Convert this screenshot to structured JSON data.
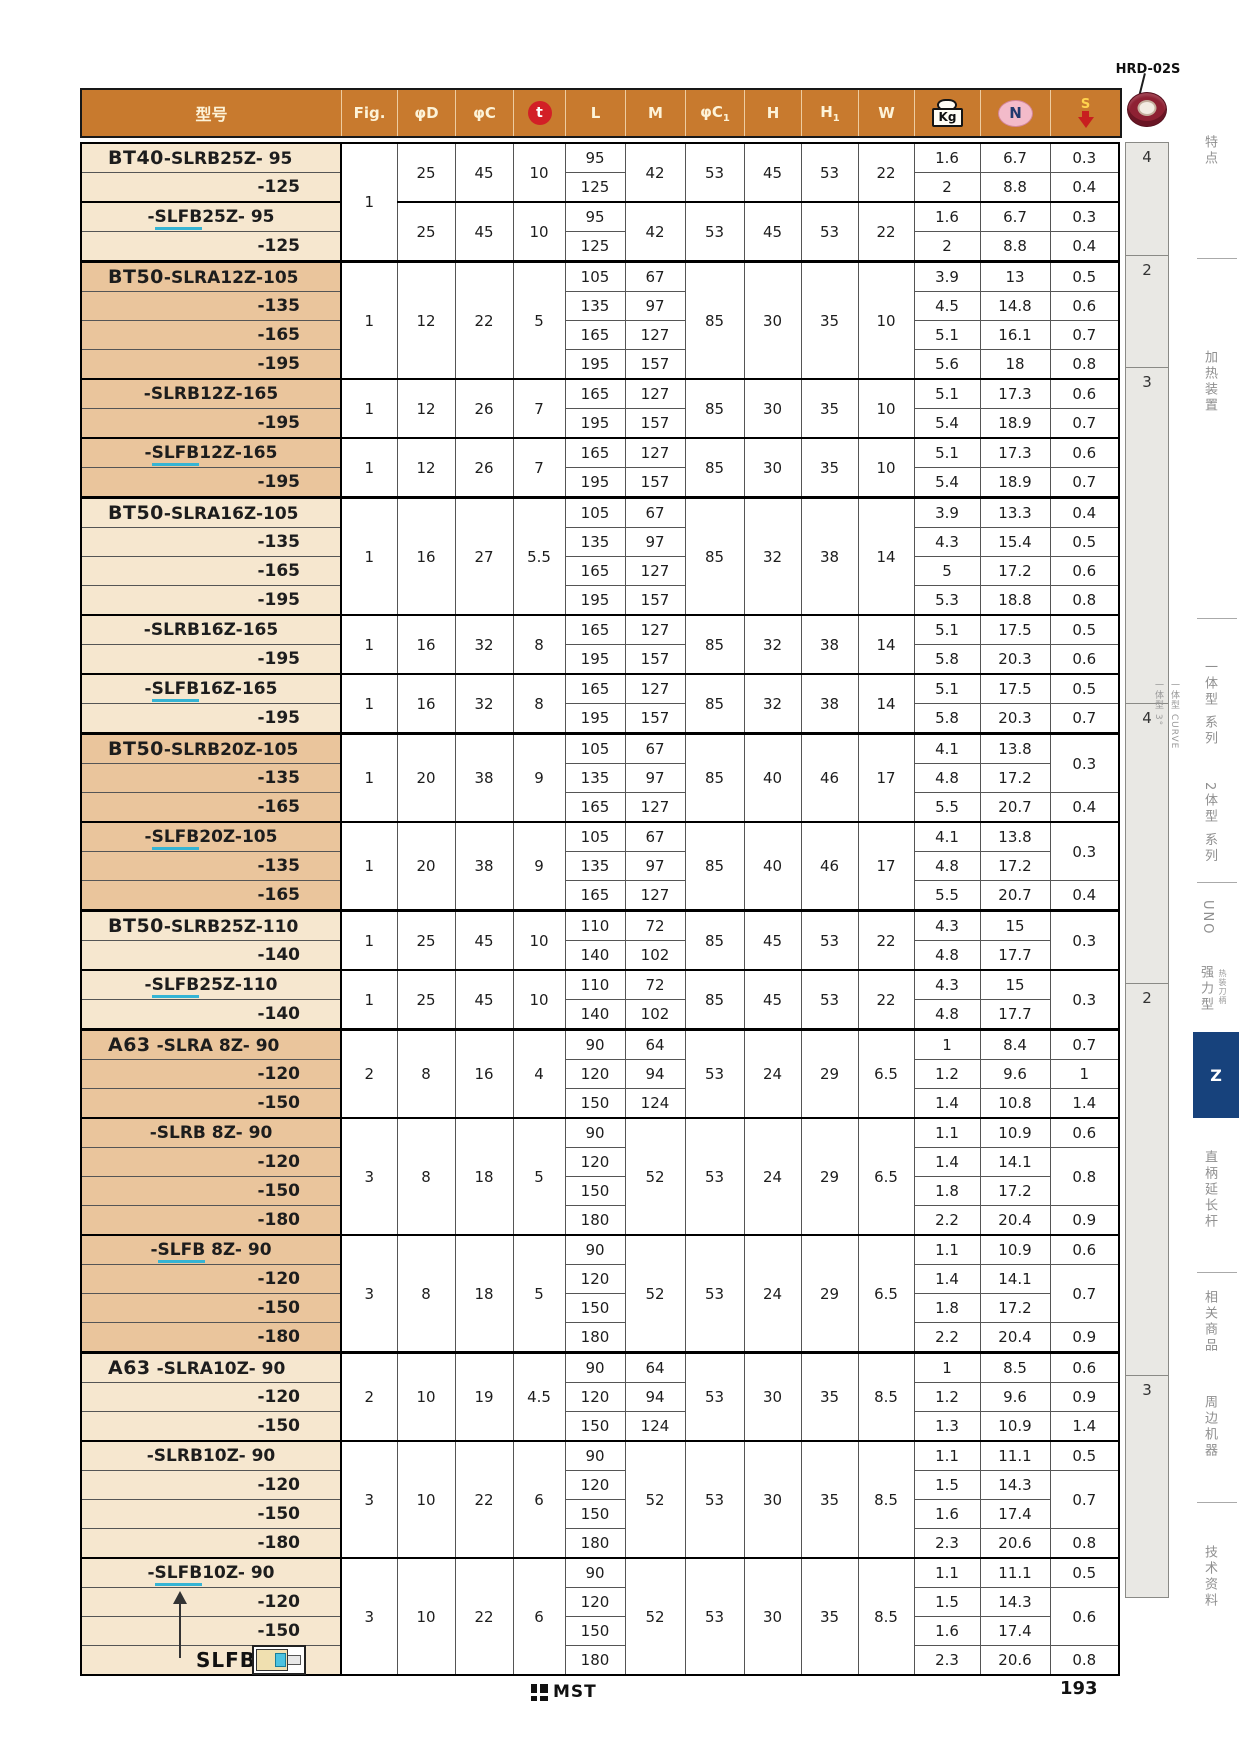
{
  "page": {
    "number": "193"
  },
  "header": {
    "model_col": "型号",
    "fig": "Fig.",
    "d": "φD",
    "c": "φC",
    "t": "t",
    "l": "L",
    "m": "M",
    "c1": "φC",
    "c1sub": "1",
    "h": "H",
    "h1": "H",
    "h1sub": "1",
    "w": "W",
    "kg": "Kg",
    "n": "N",
    "s": "S",
    "hrd_label": "HRD-02S"
  },
  "colors": {
    "header_orange": "#c87a2e",
    "band_light": "#f6e7cf",
    "band_dark": "#eac59c",
    "underline_cyan": "#35b4d4",
    "z_tab_navy": "#17427c",
    "t_red": "#d21f26",
    "arrow_red": "#c81f1f",
    "n_pink": "#f3bbca",
    "hrd_ring_red": "#8e2133"
  },
  "table": {
    "groups": [
      {
        "band": "light",
        "subs": [
          {
            "prefix": "BT40",
            "name": "-SLRB25Z- 95",
            "u": false,
            "fig": "1",
            "figspan": 4,
            "d": "25",
            "c": "45",
            "t": "10",
            "c1": "53",
            "h": "45",
            "h1": "53",
            "w": "22",
            "rows": [
              {
                "l": "95",
                "m": "42",
                "mspan": 2,
                "kg": "1.6",
                "n": "6.7",
                "s": "0.3"
              },
              {
                "suffix": "-125",
                "l": "125",
                "kg": "2",
                "n": "8.8",
                "s": "0.4"
              }
            ]
          },
          {
            "prefix": "",
            "name": "-SLFB25Z- 95",
            "u": true,
            "fig": "",
            "figspan": 0,
            "d": "25",
            "c": "45",
            "t": "10",
            "c1": "53",
            "h": "45",
            "h1": "53",
            "w": "22",
            "rows": [
              {
                "l": "95",
                "m": "42",
                "mspan": 2,
                "kg": "1.6",
                "n": "6.7",
                "s": "0.3"
              },
              {
                "suffix": "-125",
                "l": "125",
                "kg": "2",
                "n": "8.8",
                "s": "0.4"
              }
            ]
          }
        ]
      },
      {
        "band": "dark",
        "subs": [
          {
            "prefix": "BT50",
            "name": "-SLRA12Z-105",
            "u": false,
            "fig": "1",
            "d": "12",
            "c": "22",
            "t": "5",
            "c1": "85",
            "h": "30",
            "h1": "35",
            "w": "10",
            "rows": [
              {
                "l": "105",
                "m": "67",
                "kg": "3.9",
                "n": "13",
                "s": "0.5"
              },
              {
                "suffix": "-135",
                "l": "135",
                "m": "97",
                "kg": "4.5",
                "n": "14.8",
                "s": "0.6"
              },
              {
                "suffix": "-165",
                "l": "165",
                "m": "127",
                "kg": "5.1",
                "n": "16.1",
                "s": "0.7"
              },
              {
                "suffix": "-195",
                "l": "195",
                "m": "157",
                "kg": "5.6",
                "n": "18",
                "s": "0.8"
              }
            ]
          },
          {
            "prefix": "",
            "name": "-SLRB12Z-165",
            "u": false,
            "fig": "1",
            "d": "12",
            "c": "26",
            "t": "7",
            "c1": "85",
            "h": "30",
            "h1": "35",
            "w": "10",
            "rows": [
              {
                "l": "165",
                "m": "127",
                "kg": "5.1",
                "n": "17.3",
                "s": "0.6"
              },
              {
                "suffix": "-195",
                "l": "195",
                "m": "157",
                "kg": "5.4",
                "n": "18.9",
                "s": "0.7"
              }
            ]
          },
          {
            "prefix": "",
            "name": "-SLFB12Z-165",
            "u": true,
            "fig": "1",
            "d": "12",
            "c": "26",
            "t": "7",
            "c1": "85",
            "h": "30",
            "h1": "35",
            "w": "10",
            "rows": [
              {
                "l": "165",
                "m": "127",
                "kg": "5.1",
                "n": "17.3",
                "s": "0.6"
              },
              {
                "suffix": "-195",
                "l": "195",
                "m": "157",
                "kg": "5.4",
                "n": "18.9",
                "s": "0.7"
              }
            ]
          }
        ]
      },
      {
        "band": "light",
        "subs": [
          {
            "prefix": "BT50",
            "name": "-SLRA16Z-105",
            "u": false,
            "fig": "1",
            "d": "16",
            "c": "27",
            "t": "5.5",
            "c1": "85",
            "h": "32",
            "h1": "38",
            "w": "14",
            "rows": [
              {
                "l": "105",
                "m": "67",
                "kg": "3.9",
                "n": "13.3",
                "s": "0.4"
              },
              {
                "suffix": "-135",
                "l": "135",
                "m": "97",
                "kg": "4.3",
                "n": "15.4",
                "s": "0.5"
              },
              {
                "suffix": "-165",
                "l": "165",
                "m": "127",
                "kg": "5",
                "n": "17.2",
                "s": "0.6"
              },
              {
                "suffix": "-195",
                "l": "195",
                "m": "157",
                "kg": "5.3",
                "n": "18.8",
                "s": "0.8"
              }
            ]
          },
          {
            "prefix": "",
            "name": "-SLRB16Z-165",
            "u": false,
            "fig": "1",
            "d": "16",
            "c": "32",
            "t": "8",
            "c1": "85",
            "h": "32",
            "h1": "38",
            "w": "14",
            "rows": [
              {
                "l": "165",
                "m": "127",
                "kg": "5.1",
                "n": "17.5",
                "s": "0.5"
              },
              {
                "suffix": "-195",
                "l": "195",
                "m": "157",
                "kg": "5.8",
                "n": "20.3",
                "s": "0.6"
              }
            ]
          },
          {
            "prefix": "",
            "name": "-SLFB16Z-165",
            "u": true,
            "fig": "1",
            "d": "16",
            "c": "32",
            "t": "8",
            "c1": "85",
            "h": "32",
            "h1": "38",
            "w": "14",
            "rows": [
              {
                "l": "165",
                "m": "127",
                "kg": "5.1",
                "n": "17.5",
                "s": "0.5"
              },
              {
                "suffix": "-195",
                "l": "195",
                "m": "157",
                "kg": "5.8",
                "n": "20.3",
                "s": "0.7"
              }
            ]
          }
        ]
      },
      {
        "band": "dark",
        "subs": [
          {
            "prefix": "BT50",
            "name": "-SLRB20Z-105",
            "u": false,
            "fig": "1",
            "d": "20",
            "c": "38",
            "t": "9",
            "c1": "85",
            "h": "40",
            "h1": "46",
            "w": "17",
            "rows": [
              {
                "l": "105",
                "m": "67",
                "kg": "4.1",
                "n": "13.8",
                "s": "0.3",
                "sspan": 2
              },
              {
                "suffix": "-135",
                "l": "135",
                "m": "97",
                "kg": "4.8",
                "n": "17.2"
              },
              {
                "suffix": "-165",
                "l": "165",
                "m": "127",
                "kg": "5.5",
                "n": "20.7",
                "s": "0.4"
              }
            ]
          },
          {
            "prefix": "",
            "name": "-SLFB20Z-105",
            "u": true,
            "fig": "1",
            "d": "20",
            "c": "38",
            "t": "9",
            "c1": "85",
            "h": "40",
            "h1": "46",
            "w": "17",
            "rows": [
              {
                "l": "105",
                "m": "67",
                "kg": "4.1",
                "n": "13.8",
                "s": "0.3",
                "sspan": 2
              },
              {
                "suffix": "-135",
                "l": "135",
                "m": "97",
                "kg": "4.8",
                "n": "17.2"
              },
              {
                "suffix": "-165",
                "l": "165",
                "m": "127",
                "kg": "5.5",
                "n": "20.7",
                "s": "0.4"
              }
            ]
          }
        ]
      },
      {
        "band": "light",
        "subs": [
          {
            "prefix": "BT50",
            "name": "-SLRB25Z-110",
            "u": false,
            "fig": "1",
            "d": "25",
            "c": "45",
            "t": "10",
            "c1": "85",
            "h": "45",
            "h1": "53",
            "w": "22",
            "rows": [
              {
                "l": "110",
                "m": "72",
                "kg": "4.3",
                "n": "15",
                "s": "0.3",
                "sspan": 2
              },
              {
                "suffix": "-140",
                "l": "140",
                "m": "102",
                "kg": "4.8",
                "n": "17.7"
              }
            ]
          },
          {
            "prefix": "",
            "name": "-SLFB25Z-110",
            "u": true,
            "fig": "1",
            "d": "25",
            "c": "45",
            "t": "10",
            "c1": "85",
            "h": "45",
            "h1": "53",
            "w": "22",
            "rows": [
              {
                "l": "110",
                "m": "72",
                "kg": "4.3",
                "n": "15",
                "s": "0.3",
                "sspan": 2
              },
              {
                "suffix": "-140",
                "l": "140",
                "m": "102",
                "kg": "4.8",
                "n": "17.7"
              }
            ]
          }
        ]
      },
      {
        "band": "dark",
        "subs": [
          {
            "prefix": "A63",
            "name": " -SLRA 8Z- 90",
            "u": false,
            "fig": "2",
            "d": "8",
            "c": "16",
            "t": "4",
            "c1": "53",
            "h": "24",
            "h1": "29",
            "w": "6.5",
            "rows": [
              {
                "l": "90",
                "m": "64",
                "kg": "1",
                "n": "8.4",
                "s": "0.7"
              },
              {
                "suffix": "-120",
                "l": "120",
                "m": "94",
                "kg": "1.2",
                "n": "9.6",
                "s": "1"
              },
              {
                "suffix": "-150",
                "l": "150",
                "m": "124",
                "kg": "1.4",
                "n": "10.8",
                "s": "1.4"
              }
            ]
          },
          {
            "prefix": "",
            "name": "-SLRB 8Z- 90",
            "u": false,
            "fig": "3",
            "d": "8",
            "c": "18",
            "t": "5",
            "c1": "53",
            "h": "24",
            "h1": "29",
            "w": "6.5",
            "rows": [
              {
                "l": "90",
                "m": "52",
                "mspan": 4,
                "kg": "1.1",
                "n": "10.9",
                "s": "0.6"
              },
              {
                "suffix": "-120",
                "l": "120",
                "kg": "1.4",
                "n": "14.1",
                "s": "0.8",
                "sspan": 2
              },
              {
                "suffix": "-150",
                "l": "150",
                "kg": "1.8",
                "n": "17.2"
              },
              {
                "suffix": "-180",
                "l": "180",
                "kg": "2.2",
                "n": "20.4",
                "s": "0.9"
              }
            ]
          },
          {
            "prefix": "",
            "name": "-SLFB 8Z- 90",
            "u": true,
            "fig": "3",
            "d": "8",
            "c": "18",
            "t": "5",
            "c1": "53",
            "h": "24",
            "h1": "29",
            "w": "6.5",
            "rows": [
              {
                "l": "90",
                "m": "52",
                "mspan": 4,
                "kg": "1.1",
                "n": "10.9",
                "s": "0.6"
              },
              {
                "suffix": "-120",
                "l": "120",
                "kg": "1.4",
                "n": "14.1",
                "s": "0.7",
                "sspan": 2
              },
              {
                "suffix": "-150",
                "l": "150",
                "kg": "1.8",
                "n": "17.2"
              },
              {
                "suffix": "-180",
                "l": "180",
                "kg": "2.2",
                "n": "20.4",
                "s": "0.9"
              }
            ]
          }
        ]
      },
      {
        "band": "light",
        "subs": [
          {
            "prefix": "A63",
            "name": " -SLRA10Z- 90",
            "u": false,
            "fig": "2",
            "d": "10",
            "c": "19",
            "t": "4.5",
            "c1": "53",
            "h": "30",
            "h1": "35",
            "w": "8.5",
            "rows": [
              {
                "l": "90",
                "m": "64",
                "kg": "1",
                "n": "8.5",
                "s": "0.6"
              },
              {
                "suffix": "-120",
                "l": "120",
                "m": "94",
                "kg": "1.2",
                "n": "9.6",
                "s": "0.9"
              },
              {
                "suffix": "-150",
                "l": "150",
                "m": "124",
                "kg": "1.3",
                "n": "10.9",
                "s": "1.4"
              }
            ]
          },
          {
            "prefix": "",
            "name": "-SLRB10Z- 90",
            "u": false,
            "fig": "3",
            "d": "10",
            "c": "22",
            "t": "6",
            "c1": "53",
            "h": "30",
            "h1": "35",
            "w": "8.5",
            "rows": [
              {
                "l": "90",
                "m": "52",
                "mspan": 4,
                "kg": "1.1",
                "n": "11.1",
                "s": "0.5"
              },
              {
                "suffix": "-120",
                "l": "120",
                "kg": "1.5",
                "n": "14.3",
                "s": "0.7",
                "sspan": 2
              },
              {
                "suffix": "-150",
                "l": "150",
                "kg": "1.6",
                "n": "17.4"
              },
              {
                "suffix": "-180",
                "l": "180",
                "kg": "2.3",
                "n": "20.6",
                "s": "0.8"
              }
            ]
          },
          {
            "prefix": "",
            "name": "-SLFB10Z- 90",
            "u": true,
            "fig": "3",
            "d": "10",
            "c": "22",
            "t": "6",
            "c1": "53",
            "h": "30",
            "h1": "35",
            "w": "8.5",
            "rows": [
              {
                "l": "90",
                "m": "52",
                "mspan": 4,
                "kg": "1.1",
                "n": "11.1",
                "s": "0.5"
              },
              {
                "suffix": "-120",
                "l": "120",
                "kg": "1.5",
                "n": "14.3",
                "s": "0.6",
                "sspan": 2
              },
              {
                "suffix": "-150",
                "l": "150",
                "kg": "1.6",
                "n": "17.4"
              },
              {
                "suffix": "-180",
                "l": "180",
                "kg": "2.3",
                "n": "20.6",
                "s": "0.8"
              }
            ]
          }
        ]
      }
    ]
  },
  "hrd": {
    "segments": [
      {
        "rows": 4,
        "value": "4"
      },
      {
        "rows": 4,
        "value": "2"
      },
      {
        "rows": 12,
        "value": "3"
      },
      {
        "rows": 10,
        "value": "4"
      },
      {
        "rows": 14,
        "value": "2"
      },
      {
        "rows": 8,
        "value": "3"
      }
    ]
  },
  "sidebar": {
    "items": [
      "特点",
      "加热装置",
      "一体型 3°",
      "一体型 CURVE",
      "一体型 系列",
      "2体型 系列",
      "UNO",
      "强力型",
      "热装刀柄",
      "Z",
      "直柄延长杆",
      "相关商品",
      "周边机器",
      "技术资料"
    ]
  },
  "legend": {
    "label": "SLFB"
  },
  "footer": {
    "logo_text": "MST"
  }
}
